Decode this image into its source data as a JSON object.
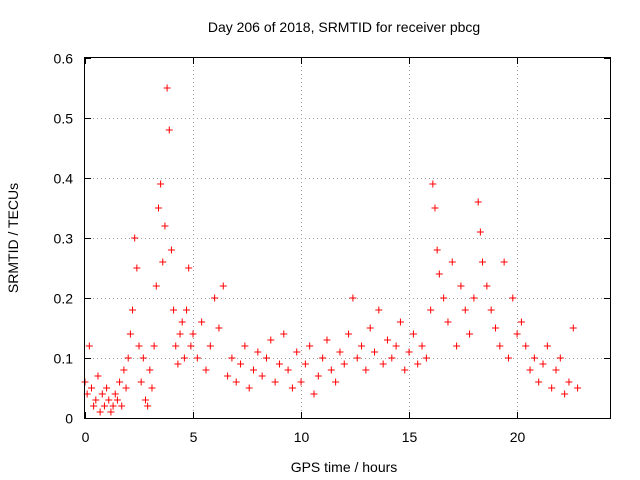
{
  "chart_data": {
    "type": "scatter",
    "title": "Day 206 of 2018, SRMTID for receiver pbcg",
    "xlabel": "GPS time / hours",
    "ylabel": "SRMTID / TECUs",
    "xlim": [
      0,
      24.3
    ],
    "ylim": [
      0,
      0.6
    ],
    "xticks": [
      0,
      5,
      10,
      15,
      20
    ],
    "yticks": [
      0,
      0.1,
      0.2,
      0.3,
      0.4,
      0.5,
      0.6
    ],
    "xtick_labels": [
      "0",
      "5",
      "10",
      "15",
      "20"
    ],
    "ytick_labels": [
      "0",
      "0.1",
      "0.2",
      "0.3",
      "0.4",
      "0.5",
      "0.6"
    ],
    "grid": true,
    "marker": "+",
    "color": "#ff0000",
    "series": [
      {
        "name": "SRMTID",
        "x": [
          0.0,
          0.1,
          0.2,
          0.3,
          0.4,
          0.5,
          0.6,
          0.7,
          0.8,
          0.9,
          1.0,
          1.1,
          1.2,
          1.3,
          1.4,
          1.5,
          1.6,
          1.7,
          1.8,
          1.9,
          2.0,
          2.1,
          2.2,
          2.3,
          2.4,
          2.5,
          2.6,
          2.7,
          2.8,
          2.9,
          3.0,
          3.1,
          3.2,
          3.3,
          3.4,
          3.5,
          3.6,
          3.7,
          3.8,
          3.9,
          4.0,
          4.1,
          4.2,
          4.3,
          4.4,
          4.5,
          4.6,
          4.7,
          4.8,
          4.9,
          5.0,
          5.2,
          5.4,
          5.6,
          5.8,
          6.0,
          6.2,
          6.4,
          6.6,
          6.8,
          7.0,
          7.2,
          7.4,
          7.6,
          7.8,
          8.0,
          8.2,
          8.4,
          8.6,
          8.8,
          9.0,
          9.2,
          9.4,
          9.6,
          9.8,
          10.0,
          10.2,
          10.4,
          10.6,
          10.8,
          11.0,
          11.2,
          11.4,
          11.6,
          11.8,
          12.0,
          12.2,
          12.4,
          12.6,
          12.8,
          13.0,
          13.2,
          13.4,
          13.6,
          13.8,
          14.0,
          14.2,
          14.4,
          14.6,
          14.8,
          15.0,
          15.2,
          15.4,
          15.6,
          15.8,
          16.0,
          16.1,
          16.2,
          16.3,
          16.4,
          16.6,
          16.8,
          17.0,
          17.2,
          17.4,
          17.6,
          17.8,
          18.0,
          18.2,
          18.3,
          18.4,
          18.6,
          18.8,
          19.0,
          19.2,
          19.4,
          19.6,
          19.8,
          20.0,
          20.2,
          20.4,
          20.6,
          20.8,
          21.0,
          21.2,
          21.4,
          21.6,
          21.8,
          22.0,
          22.2,
          22.4,
          22.6,
          22.8
        ],
        "y": [
          0.06,
          0.04,
          0.12,
          0.05,
          0.02,
          0.03,
          0.07,
          0.01,
          0.04,
          0.02,
          0.05,
          0.03,
          0.01,
          0.02,
          0.04,
          0.03,
          0.06,
          0.02,
          0.08,
          0.05,
          0.1,
          0.14,
          0.18,
          0.3,
          0.25,
          0.12,
          0.06,
          0.1,
          0.03,
          0.02,
          0.08,
          0.05,
          0.12,
          0.22,
          0.35,
          0.39,
          0.26,
          0.32,
          0.55,
          0.48,
          0.28,
          0.18,
          0.12,
          0.09,
          0.14,
          0.16,
          0.1,
          0.18,
          0.25,
          0.12,
          0.14,
          0.1,
          0.16,
          0.08,
          0.12,
          0.2,
          0.15,
          0.22,
          0.07,
          0.1,
          0.06,
          0.09,
          0.12,
          0.05,
          0.08,
          0.11,
          0.07,
          0.1,
          0.13,
          0.06,
          0.09,
          0.14,
          0.08,
          0.05,
          0.11,
          0.06,
          0.09,
          0.12,
          0.04,
          0.07,
          0.1,
          0.13,
          0.08,
          0.06,
          0.11,
          0.09,
          0.14,
          0.2,
          0.1,
          0.12,
          0.08,
          0.15,
          0.11,
          0.18,
          0.09,
          0.13,
          0.1,
          0.12,
          0.16,
          0.08,
          0.11,
          0.14,
          0.09,
          0.12,
          0.1,
          0.18,
          0.39,
          0.35,
          0.28,
          0.24,
          0.2,
          0.16,
          0.26,
          0.12,
          0.22,
          0.18,
          0.14,
          0.2,
          0.36,
          0.31,
          0.26,
          0.22,
          0.18,
          0.15,
          0.12,
          0.26,
          0.1,
          0.2,
          0.14,
          0.16,
          0.12,
          0.08,
          0.1,
          0.06,
          0.09,
          0.12,
          0.05,
          0.08,
          0.1,
          0.04,
          0.06,
          0.15,
          0.05
        ]
      }
    ]
  }
}
